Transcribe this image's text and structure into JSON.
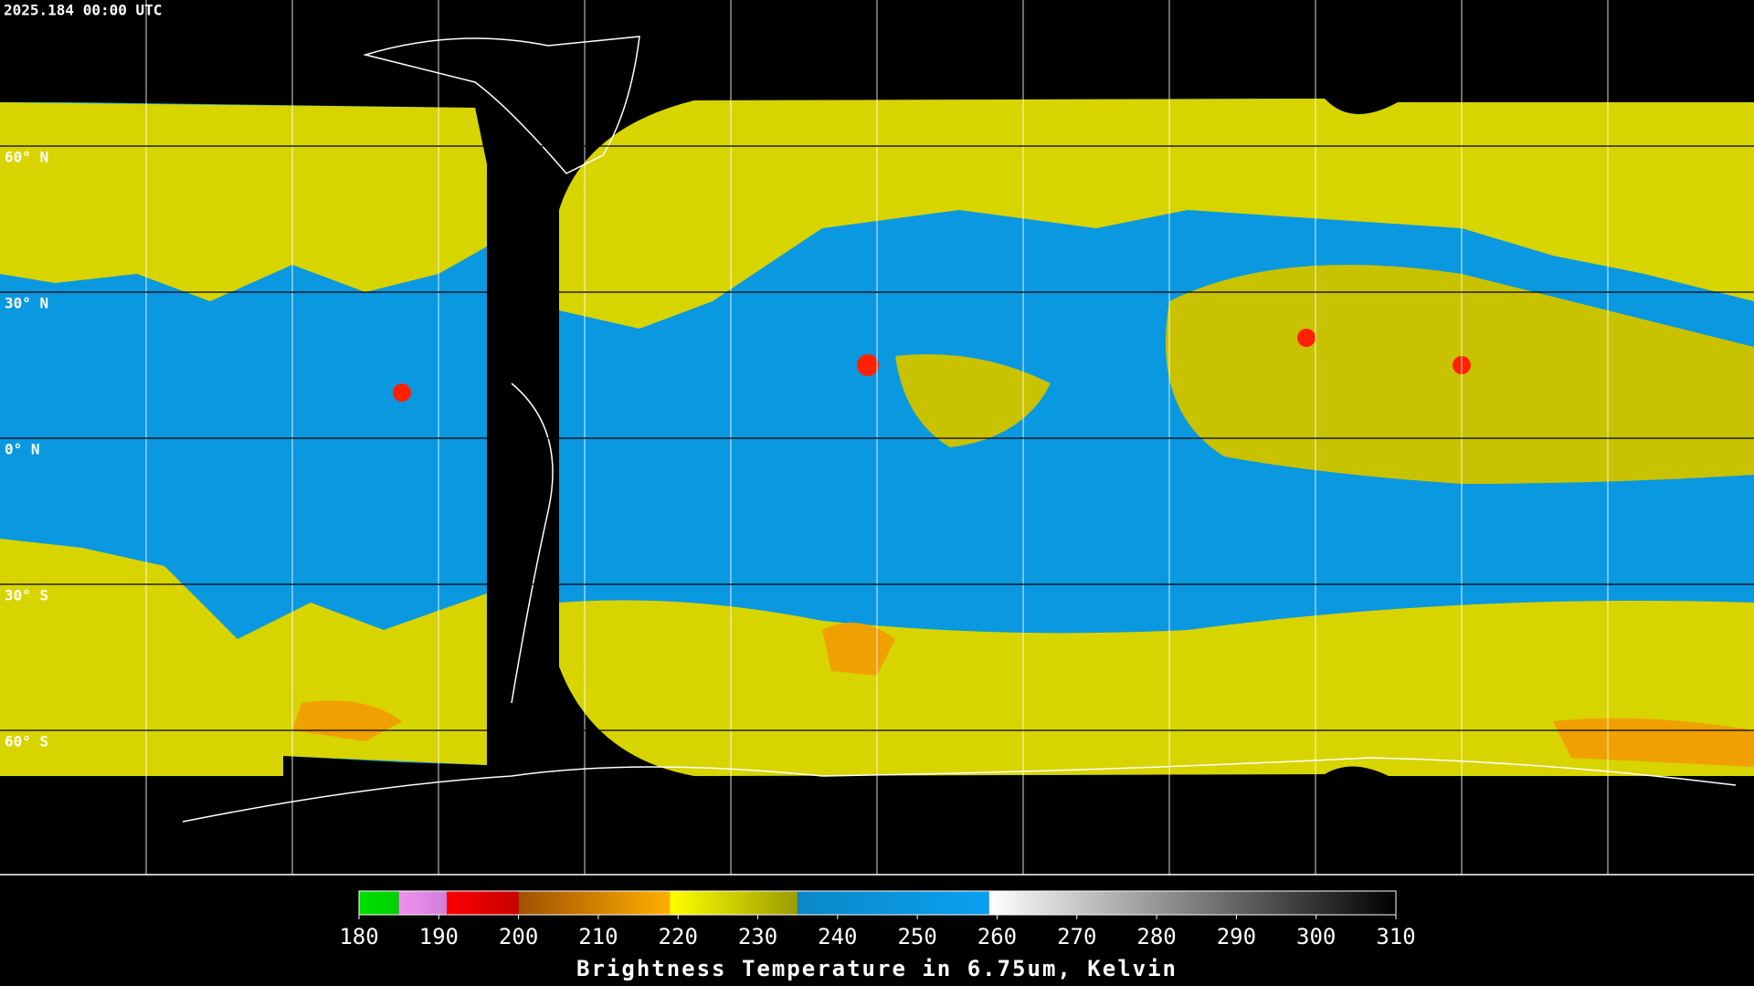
{
  "header": {
    "timestamp": "2025.184 00:00 UTC"
  },
  "map": {
    "latitude_labels": [
      "60° N",
      "30° N",
      "0° N",
      "30° S",
      "60° S"
    ]
  },
  "colorbar": {
    "range": [
      180,
      310
    ],
    "ticks": [
      180,
      190,
      200,
      210,
      220,
      230,
      240,
      250,
      260,
      270,
      280,
      290,
      300,
      310
    ],
    "segments": [
      {
        "from": 180,
        "to": 185,
        "colors": [
          "#00e000",
          "#00d000"
        ]
      },
      {
        "from": 185,
        "to": 191,
        "colors": [
          "#f090f0",
          "#d080d8"
        ]
      },
      {
        "from": 191,
        "to": 200,
        "colors": [
          "#ff0000",
          "#c80000"
        ]
      },
      {
        "from": 200,
        "to": 219,
        "colors": [
          "#a05000",
          "#ffb000"
        ]
      },
      {
        "from": 219,
        "to": 235,
        "colors": [
          "#ffff00",
          "#9a9a00"
        ]
      },
      {
        "from": 235,
        "to": 259,
        "colors": [
          "#0a88c8",
          "#0aa0f0"
        ]
      },
      {
        "from": 259,
        "to": 310,
        "colors": [
          "#ffffff",
          "#000000"
        ]
      }
    ],
    "label": "Brightness Temperature in 6.75um, Kelvin"
  }
}
